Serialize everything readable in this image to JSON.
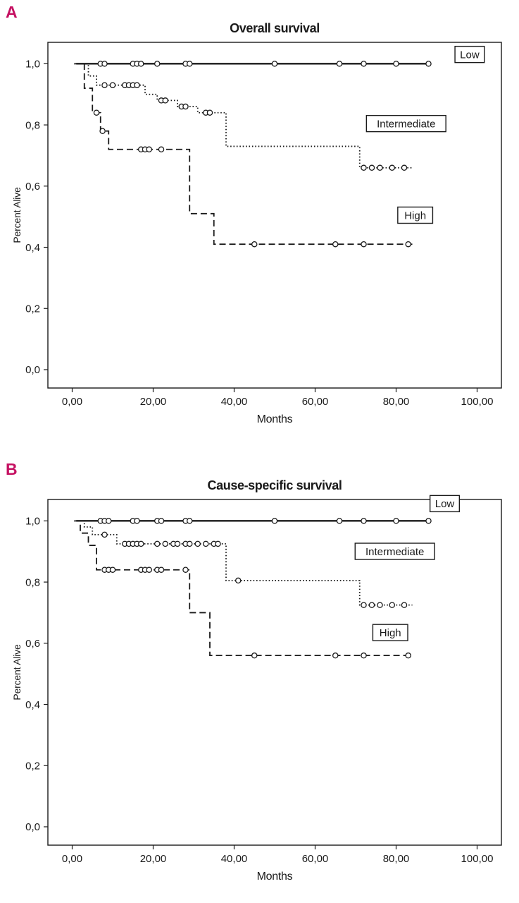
{
  "page": {
    "background": "#ffffff",
    "accent": "#c51162",
    "line_color": "#1a1a1a"
  },
  "panels": [
    {
      "letter": "A",
      "title": "Overall survival",
      "ylabel": "Percent Alive",
      "xlabel": "Months"
    },
    {
      "letter": "B",
      "title": "Cause-specific survival",
      "ylabel": "Percent Alive",
      "xlabel": "Months"
    }
  ],
  "chart_data": [
    {
      "type": "line",
      "subtype": "kaplan-meier-step",
      "title": "Overall survival",
      "xlabel": "Months",
      "ylabel": "Percent Alive",
      "xlim": [
        -6,
        106
      ],
      "ylim": [
        -0.06,
        1.07
      ],
      "grid": false,
      "x_ticks": {
        "values": [
          0,
          20,
          40,
          60,
          80,
          100
        ],
        "labels": [
          "0,00",
          "20,00",
          "40,00",
          "60,00",
          "80,00",
          "100,00"
        ]
      },
      "y_ticks": {
        "values": [
          0.0,
          0.2,
          0.4,
          0.6,
          0.8,
          1.0
        ],
        "labels": [
          "0,0",
          "0,2",
          "0,4",
          "0,6",
          "0,8",
          "1,0"
        ]
      },
      "series": [
        {
          "name": "Low",
          "style": "solid",
          "steps": [
            [
              1,
              1.0
            ],
            [
              88,
              1.0
            ]
          ],
          "censors": [
            7,
            8,
            15,
            16,
            17,
            21,
            28,
            29,
            50,
            66,
            72,
            80,
            88
          ]
        },
        {
          "name": "Intermediate",
          "style": "dotted",
          "steps": [
            [
              0.5,
              1.0
            ],
            [
              4,
              0.96
            ],
            [
              6,
              0.93
            ],
            [
              18,
              0.9
            ],
            [
              21,
              0.88
            ],
            [
              26,
              0.86
            ],
            [
              31,
              0.84
            ],
            [
              38,
              0.73
            ],
            [
              71,
              0.66
            ],
            [
              84,
              0.66
            ]
          ],
          "censors": [
            8,
            10,
            13,
            14,
            15,
            16,
            22,
            23,
            27,
            28,
            33,
            34,
            72,
            74,
            76,
            79,
            82
          ]
        },
        {
          "name": "High",
          "style": "dashed",
          "steps": [
            [
              0.5,
              1.0
            ],
            [
              3,
              0.92
            ],
            [
              5,
              0.84
            ],
            [
              7,
              0.78
            ],
            [
              9,
              0.72
            ],
            [
              29,
              0.51
            ],
            [
              35,
              0.41
            ],
            [
              84,
              0.41
            ]
          ],
          "censors": [
            6,
            7.5,
            17,
            18,
            19,
            22,
            45,
            65,
            72,
            83
          ]
        }
      ],
      "legend": [
        {
          "label": "Low",
          "fx": 0.93,
          "fy": 0.035
        },
        {
          "label": "Intermediate",
          "fx": 0.79,
          "fy": 0.235
        },
        {
          "label": "High",
          "fx": 0.81,
          "fy": 0.5
        }
      ],
      "legend_position": "inside-right"
    },
    {
      "type": "line",
      "subtype": "kaplan-meier-step",
      "title": "Cause-specific survival",
      "xlabel": "Months",
      "ylabel": "Percent Alive",
      "xlim": [
        -6,
        106
      ],
      "ylim": [
        -0.06,
        1.07
      ],
      "grid": false,
      "x_ticks": {
        "values": [
          0,
          20,
          40,
          60,
          80,
          100
        ],
        "labels": [
          "0,00",
          "20,00",
          "40,00",
          "60,00",
          "80,00",
          "100,00"
        ]
      },
      "y_ticks": {
        "values": [
          0.0,
          0.2,
          0.4,
          0.6,
          0.8,
          1.0
        ],
        "labels": [
          "0,0",
          "0,2",
          "0,4",
          "0,6",
          "0,8",
          "1,0"
        ]
      },
      "series": [
        {
          "name": "Low",
          "style": "solid",
          "steps": [
            [
              1,
              1.0
            ],
            [
              88,
              1.0
            ]
          ],
          "censors": [
            7,
            8,
            9,
            15,
            16,
            21,
            22,
            28,
            29,
            50,
            66,
            72,
            80,
            88
          ]
        },
        {
          "name": "Intermediate",
          "style": "dotted",
          "steps": [
            [
              0.5,
              1.0
            ],
            [
              3,
              0.98
            ],
            [
              5,
              0.955
            ],
            [
              11,
              0.925
            ],
            [
              38,
              0.805
            ],
            [
              71,
              0.725
            ],
            [
              84,
              0.725
            ]
          ],
          "censors": [
            8,
            13,
            14,
            15,
            16,
            17,
            21,
            23,
            25,
            26,
            28,
            29,
            31,
            33,
            35,
            36,
            41,
            72,
            74,
            76,
            79,
            82
          ]
        },
        {
          "name": "High",
          "style": "dashed",
          "steps": [
            [
              0.5,
              1.0
            ],
            [
              2,
              0.96
            ],
            [
              4,
              0.92
            ],
            [
              6,
              0.84
            ],
            [
              29,
              0.7
            ],
            [
              34,
              0.56
            ],
            [
              84,
              0.56
            ]
          ],
          "censors": [
            8,
            9,
            10,
            17,
            18,
            19,
            21,
            22,
            28,
            45,
            65,
            72,
            83
          ]
        }
      ],
      "legend": [
        {
          "label": "Low",
          "fx": 0.875,
          "fy": 0.012
        },
        {
          "label": "Intermediate",
          "fx": 0.765,
          "fy": 0.15
        },
        {
          "label": "High",
          "fx": 0.755,
          "fy": 0.385
        }
      ],
      "legend_position": "inside-right"
    }
  ]
}
